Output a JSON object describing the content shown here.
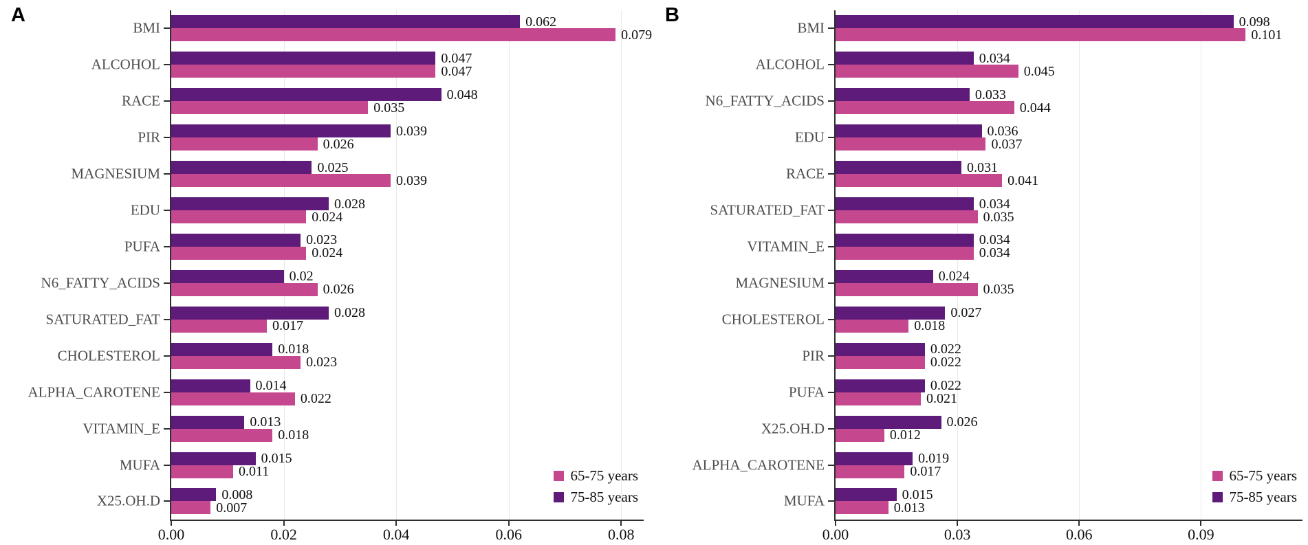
{
  "figure_description": "Two-panel grouped horizontal bar chart of variable importance by age group",
  "legend": {
    "items": [
      {
        "label": "65-75 years",
        "color": "#C5488F"
      },
      {
        "label": "75-85 years",
        "color": "#5E1B79"
      }
    ]
  },
  "colors": {
    "bar_65_75": "#C5488F",
    "bar_75_85": "#5E1B79",
    "axis": "#2e2e2e",
    "category_label": "#4d4d4d",
    "value_label": "#111111",
    "gridline": "#e9e9e9",
    "background": "#ffffff"
  },
  "chart_data": [
    {
      "type": "bar",
      "orientation": "horizontal",
      "panel_label": "A",
      "categories": [
        "BMI",
        "ALCOHOL",
        "RACE",
        "PIR",
        "MAGNESIUM",
        "EDU",
        "PUFA",
        "N6_FATTY_ACIDS",
        "SATURATED_FAT",
        "CHOLESTEROL",
        "ALPHA_CAROTENE",
        "VITAMIN_E",
        "MUFA",
        "X25.OH.D"
      ],
      "series": [
        {
          "name": "65-75 years",
          "color": "#C5488F",
          "values": [
            0.079,
            0.047,
            0.035,
            0.026,
            0.039,
            0.024,
            0.024,
            0.026,
            0.017,
            0.023,
            0.022,
            0.018,
            0.011,
            0.007
          ]
        },
        {
          "name": "75-85 years",
          "color": "#5E1B79",
          "values": [
            0.062,
            0.047,
            0.048,
            0.039,
            0.025,
            0.028,
            0.023,
            0.02,
            0.028,
            0.018,
            0.014,
            0.013,
            0.015,
            0.008
          ]
        }
      ],
      "bar_order_top_to_bottom": [
        "75-85 years",
        "65-75 years"
      ],
      "value_labels": true,
      "xlim": [
        0,
        0.084
      ],
      "x_ticks": [
        0,
        0.02,
        0.04,
        0.06,
        0.08
      ],
      "x_tick_labels": [
        "0.00",
        "0.02",
        "0.04",
        "0.06",
        "0.08"
      ],
      "grid": "vertical-light",
      "legend_position": "bottom-right"
    },
    {
      "type": "bar",
      "orientation": "horizontal",
      "panel_label": "B",
      "categories": [
        "BMI",
        "ALCOHOL",
        "N6_FATTY_ACIDS",
        "EDU",
        "RACE",
        "SATURATED_FAT",
        "VITAMIN_E",
        "MAGNESIUM",
        "CHOLESTEROL",
        "PIR",
        "PUFA",
        "X25.OH.D",
        "ALPHA_CAROTENE",
        "MUFA"
      ],
      "series": [
        {
          "name": "65-75 years",
          "color": "#C5488F",
          "values": [
            0.101,
            0.045,
            0.044,
            0.037,
            0.041,
            0.035,
            0.034,
            0.035,
            0.018,
            0.022,
            0.021,
            0.012,
            0.017,
            0.013
          ]
        },
        {
          "name": "75-85 years",
          "color": "#5E1B79",
          "values": [
            0.098,
            0.034,
            0.033,
            0.036,
            0.031,
            0.034,
            0.034,
            0.024,
            0.027,
            0.022,
            0.022,
            0.026,
            0.019,
            0.015
          ]
        }
      ],
      "bar_order_top_to_bottom": [
        "75-85 years",
        "65-75 years"
      ],
      "value_labels": true,
      "xlim": [
        0,
        0.115
      ],
      "x_ticks": [
        0,
        0.03,
        0.06,
        0.09
      ],
      "x_tick_labels": [
        "0.00",
        "0.03",
        "0.06",
        "0.09"
      ],
      "grid": "vertical-light",
      "legend_position": "bottom-right"
    }
  ]
}
